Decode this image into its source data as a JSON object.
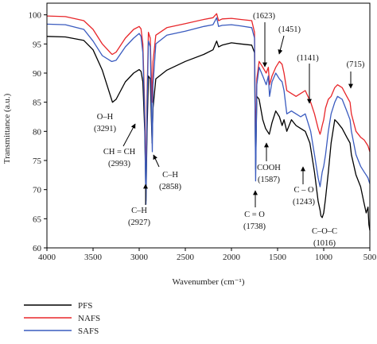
{
  "chart_data": {
    "type": "line",
    "title": "",
    "xlabel": "Wavenumber (cm⁻¹)",
    "ylabel": "Transmittance (a.u.)",
    "xlim": [
      4000,
      500
    ],
    "ylim": [
      60,
      102
    ],
    "x_ticks": [
      "4000",
      "3500",
      "3000",
      "2500",
      "2000",
      "1500",
      "1000",
      "500"
    ],
    "y_ticks": [
      "60",
      "65",
      "70",
      "75",
      "80",
      "85",
      "90",
      "95",
      "100"
    ],
    "legend_position": "bottom-left",
    "series": [
      {
        "name": "PFS",
        "color": "#000000",
        "x": [
          4000,
          3800,
          3600,
          3500,
          3400,
          3320,
          3290,
          3250,
          3150,
          3060,
          3000,
          2980,
          2960,
          2940,
          2927,
          2915,
          2900,
          2880,
          2860,
          2850,
          2820,
          2700,
          2500,
          2300,
          2200,
          2160,
          2140,
          2100,
          2000,
          1900,
          1780,
          1750,
          1738,
          1725,
          1700,
          1660,
          1630,
          1610,
          1590,
          1560,
          1520,
          1480,
          1451,
          1430,
          1400,
          1350,
          1300,
          1250,
          1200,
          1150,
          1100,
          1060,
          1040,
          1030,
          1016,
          1000,
          980,
          950,
          920,
          880,
          850,
          800,
          750,
          715,
          700,
          650,
          600,
          560,
          540,
          520,
          510,
          500
        ],
        "y": [
          96.3,
          96.2,
          95.6,
          94.0,
          90.5,
          86.5,
          85.0,
          85.5,
          88.5,
          90.0,
          90.6,
          90.3,
          88.5,
          80.0,
          68.0,
          80.0,
          89.5,
          89.0,
          78.0,
          84.0,
          89.0,
          90.5,
          92.0,
          93.2,
          94.0,
          95.5,
          94.5,
          94.8,
          95.2,
          95.0,
          94.8,
          93.5,
          73.5,
          86.0,
          85.5,
          82.0,
          80.5,
          80.0,
          79.5,
          81.5,
          83.5,
          82.5,
          81.0,
          82.0,
          80.0,
          82.0,
          81.0,
          80.5,
          80.0,
          78.0,
          73.0,
          68.0,
          66.5,
          65.5,
          65.2,
          66.0,
          68.5,
          73.0,
          78.0,
          82.0,
          81.5,
          80.5,
          79.0,
          78.0,
          76.0,
          72.5,
          70.5,
          67.5,
          66.0,
          67.0,
          64.0,
          63.0
        ]
      },
      {
        "name": "NAFS",
        "color": "#e8262a",
        "x": [
          4000,
          3800,
          3600,
          3500,
          3400,
          3300,
          3291,
          3250,
          3150,
          3060,
          3000,
          2980,
          2960,
          2940,
          2927,
          2915,
          2900,
          2880,
          2860,
          2850,
          2820,
          2700,
          2500,
          2300,
          2200,
          2160,
          2140,
          2100,
          2000,
          1900,
          1780,
          1750,
          1738,
          1725,
          1700,
          1660,
          1623,
          1600,
          1587,
          1560,
          1520,
          1480,
          1451,
          1430,
          1400,
          1350,
          1300,
          1250,
          1200,
          1141,
          1100,
          1060,
          1040,
          1030,
          1016,
          1000,
          980,
          950,
          920,
          880,
          850,
          800,
          750,
          715,
          700,
          650,
          600,
          560,
          540,
          520,
          510,
          500
        ],
        "y": [
          99.8,
          99.7,
          99.0,
          97.5,
          95.0,
          93.3,
          93.2,
          93.6,
          96.0,
          97.5,
          98.0,
          97.6,
          95.0,
          84.0,
          71.0,
          86.0,
          97.0,
          96.0,
          85.0,
          92.0,
          96.5,
          97.8,
          98.5,
          99.2,
          99.5,
          100.2,
          99.0,
          99.3,
          99.4,
          99.2,
          99.0,
          97.0,
          76.5,
          89.0,
          92.0,
          91.0,
          90.0,
          91.0,
          88.0,
          89.5,
          91.0,
          92.0,
          91.5,
          90.0,
          87.0,
          86.5,
          86.0,
          86.5,
          87.0,
          85.0,
          83.0,
          80.5,
          79.5,
          80.0,
          81.0,
          82.0,
          84.0,
          85.5,
          86.0,
          87.5,
          88.0,
          87.5,
          86.0,
          85.0,
          83.0,
          80.0,
          79.0,
          78.5,
          78.0,
          77.5,
          77.0,
          76.5
        ]
      },
      {
        "name": "SAFS",
        "color": "#3a5bbf",
        "x": [
          4000,
          3800,
          3600,
          3500,
          3400,
          3300,
          3291,
          3250,
          3150,
          3060,
          3000,
          2980,
          2960,
          2940,
          2927,
          2915,
          2900,
          2880,
          2858,
          2850,
          2820,
          2700,
          2500,
          2300,
          2200,
          2160,
          2140,
          2100,
          2000,
          1900,
          1780,
          1750,
          1738,
          1725,
          1700,
          1660,
          1623,
          1600,
          1587,
          1560,
          1520,
          1480,
          1451,
          1430,
          1400,
          1350,
          1300,
          1250,
          1200,
          1141,
          1100,
          1060,
          1040,
          1030,
          1016,
          1000,
          980,
          950,
          920,
          880,
          850,
          800,
          750,
          715,
          700,
          650,
          600,
          560,
          540,
          520,
          510,
          500
        ],
        "y": [
          98.4,
          98.3,
          97.5,
          95.5,
          93.0,
          92.0,
          92.0,
          92.2,
          94.5,
          96.0,
          96.8,
          96.3,
          93.5,
          82.0,
          67.5,
          84.0,
          95.5,
          94.5,
          76.5,
          88.0,
          95.0,
          96.5,
          97.2,
          98.0,
          98.3,
          99.5,
          98.0,
          98.2,
          98.3,
          98.1,
          97.8,
          96.0,
          71.5,
          88.0,
          91.0,
          89.5,
          88.0,
          89.5,
          86.0,
          88.5,
          90.0,
          89.0,
          88.5,
          87.0,
          83.0,
          83.5,
          83.0,
          82.5,
          83.0,
          80.0,
          76.0,
          72.0,
          70.5,
          71.5,
          73.0,
          74.0,
          76.0,
          80.0,
          83.0,
          85.0,
          86.0,
          85.5,
          83.5,
          82.0,
          80.0,
          76.0,
          74.0,
          73.0,
          72.5,
          72.0,
          71.5,
          71.0
        ]
      }
    ],
    "annotations": [
      {
        "lines": [
          "O–H",
          "(3291)"
        ]
      },
      {
        "lines": [
          "CH = CH",
          "(2993)"
        ]
      },
      {
        "lines": [
          "C–H",
          "(2858)"
        ]
      },
      {
        "lines": [
          "C–H",
          "(2927)"
        ]
      },
      {
        "lines": [
          "(1623)"
        ]
      },
      {
        "lines": [
          "(1451)"
        ]
      },
      {
        "lines": [
          "(1141)"
        ]
      },
      {
        "lines": [
          "(715)"
        ]
      },
      {
        "lines": [
          "COOH",
          "(1587)"
        ]
      },
      {
        "lines": [
          "C = O",
          "(1738)"
        ]
      },
      {
        "lines": [
          "C – O",
          "(1243)"
        ]
      },
      {
        "lines": [
          "C–O–C",
          "(1016)"
        ]
      }
    ]
  }
}
